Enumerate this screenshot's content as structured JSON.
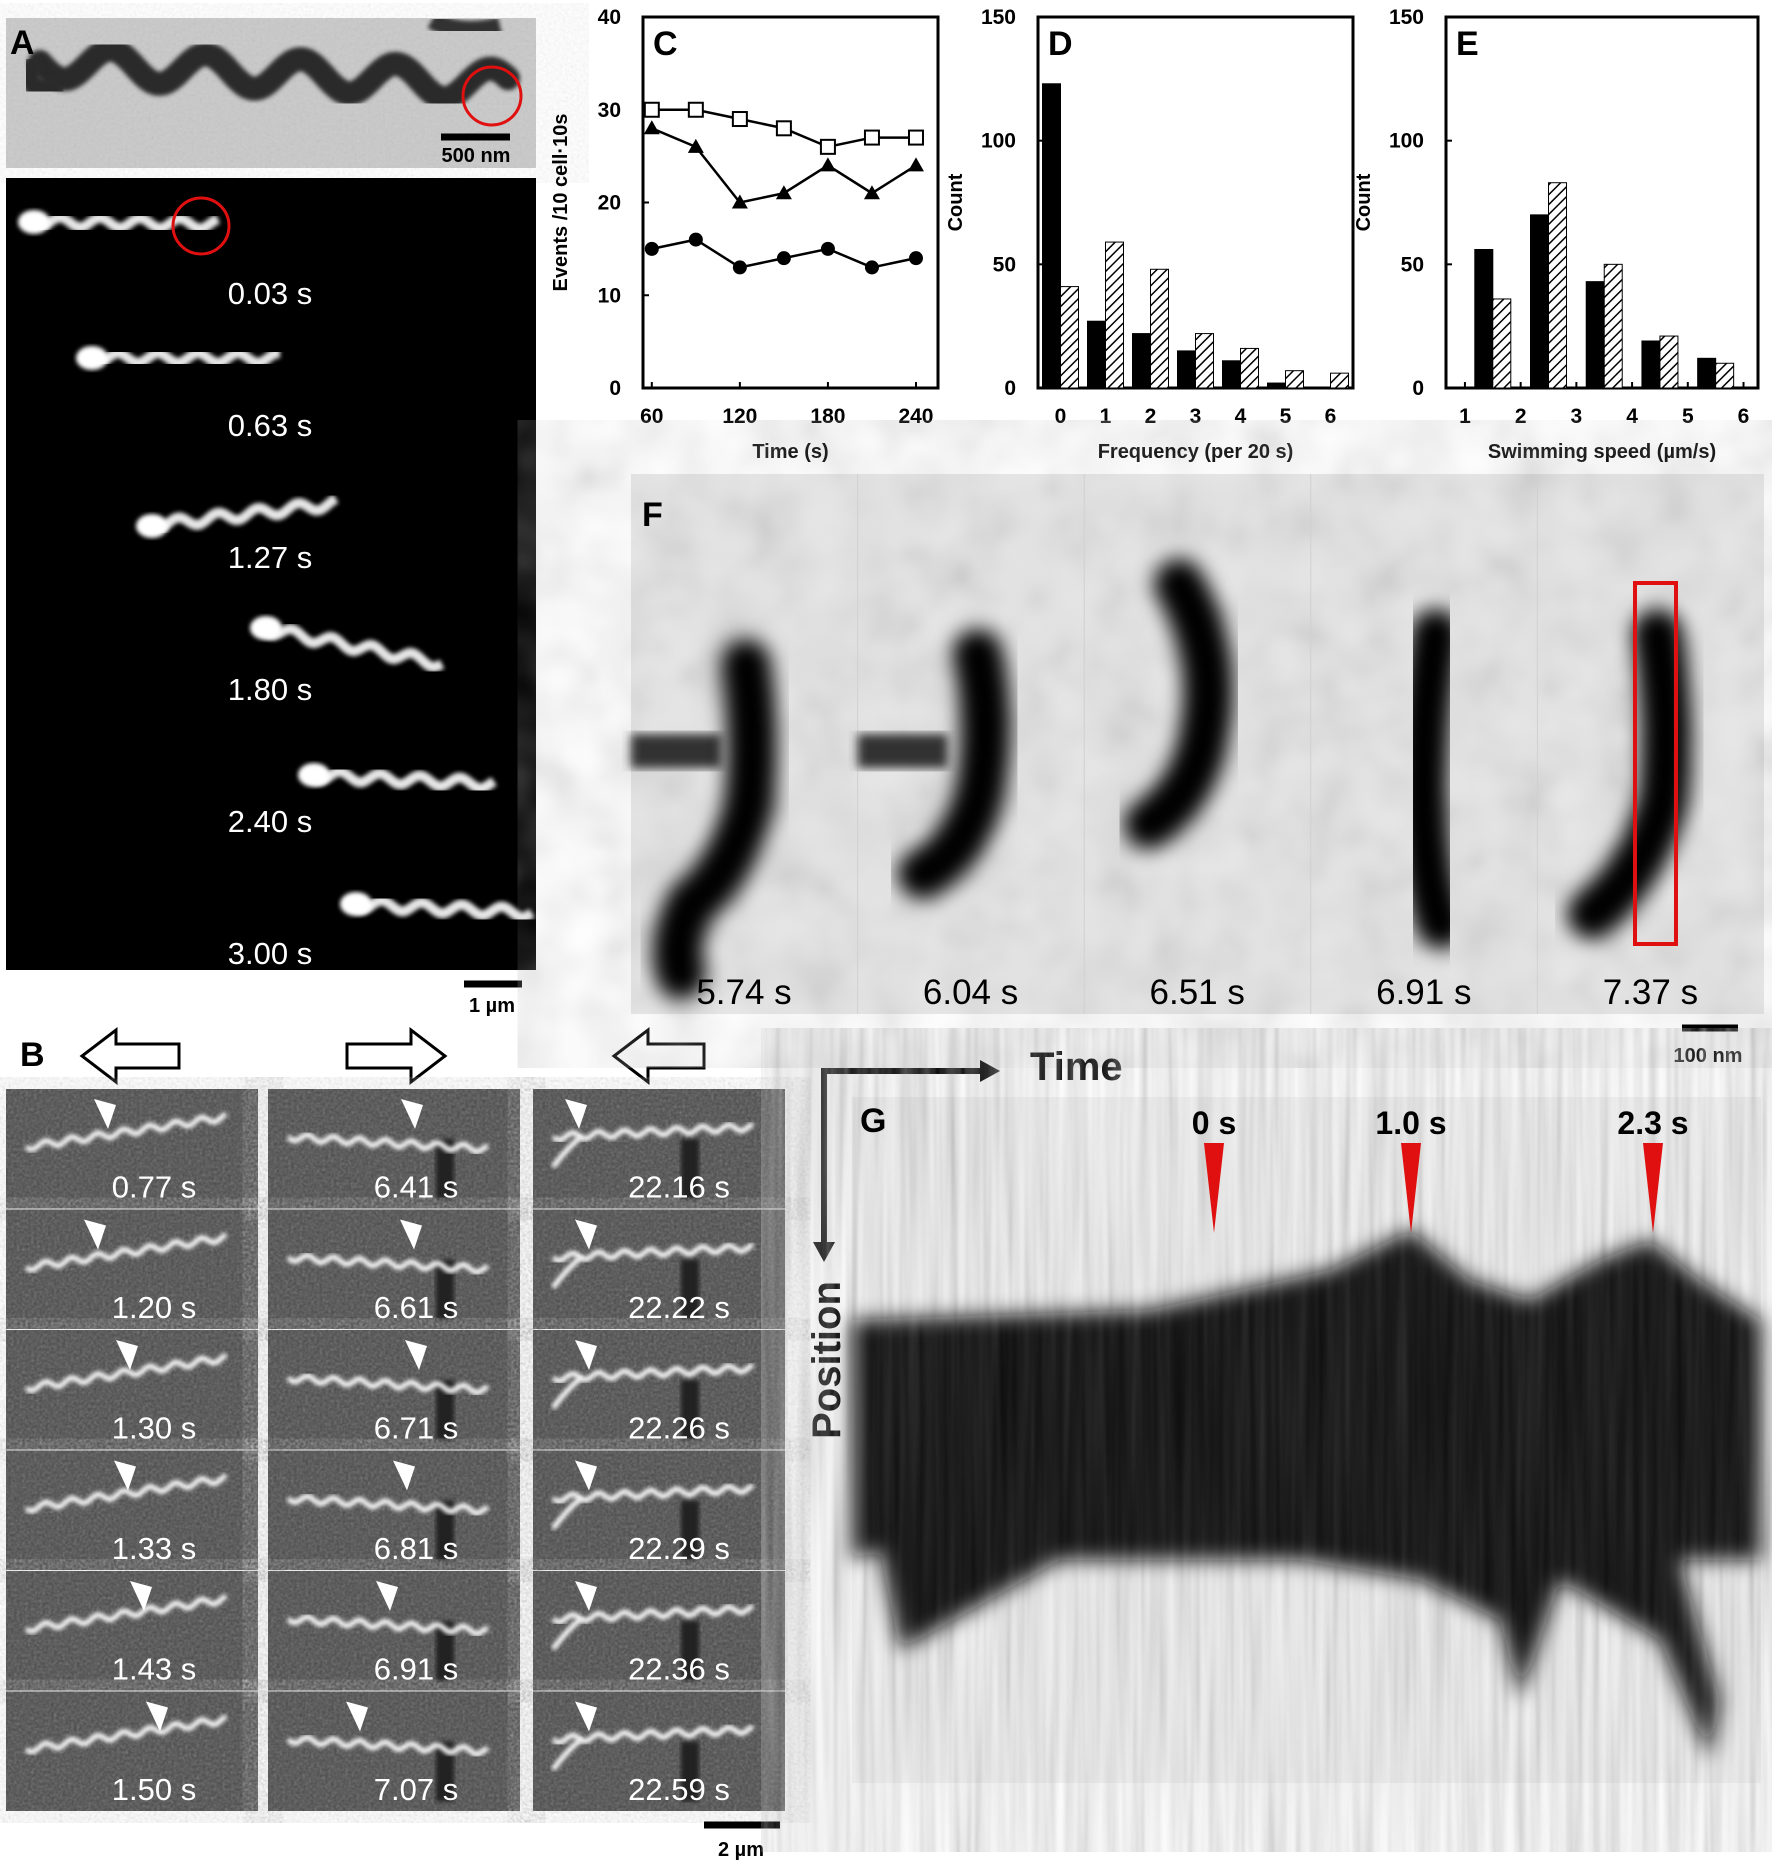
{
  "panels": {
    "A": {
      "label": "A",
      "em_scale": "500 nm",
      "times": [
        "0.03 s",
        "0.63 s",
        "1.27 s",
        "1.80 s",
        "2.40 s",
        "3.00 s"
      ],
      "scale": "1 µm"
    },
    "B": {
      "label": "B",
      "columns": [
        [
          "0.77 s",
          "1.20 s",
          "1.30 s",
          "1.33 s",
          "1.43 s",
          "1.50 s"
        ],
        [
          "6.41 s",
          "6.61 s",
          "6.71 s",
          "6.81 s",
          "6.91 s",
          "7.07 s"
        ],
        [
          "22.16 s",
          "22.22 s",
          "22.26 s",
          "22.29 s",
          "22.36 s",
          "22.59 s"
        ]
      ],
      "scale": "2 µm"
    },
    "F": {
      "label": "F",
      "times": [
        "5.74 s",
        "6.04 s",
        "6.51 s",
        "6.91 s",
        "7.37 s"
      ],
      "scale": "100 nm"
    },
    "G": {
      "label": "G",
      "time_axis": "Time",
      "position_axis": "Position",
      "markers": [
        "0 s",
        "1.0 s",
        "2.3 s"
      ]
    }
  },
  "chart_data": [
    {
      "type": "line",
      "label": "C",
      "x_label": "Time (s)",
      "y_label": "Events /10 cell·10s",
      "x": [
        60,
        90,
        120,
        150,
        180,
        210,
        240
      ],
      "xlim": [
        54,
        255
      ],
      "xticks": [
        60,
        120,
        180,
        240
      ],
      "ylim": [
        0,
        40
      ],
      "yticks": [
        0,
        10,
        20,
        30,
        40
      ],
      "series": [
        {
          "marker": "square-open",
          "color": "#000000",
          "values": [
            30,
            30,
            29,
            28,
            26,
            27,
            27
          ]
        },
        {
          "marker": "triangle",
          "color": "#000000",
          "values": [
            28,
            26,
            20,
            21,
            24,
            21,
            24
          ]
        },
        {
          "marker": "circle",
          "color": "#000000",
          "values": [
            15,
            16,
            13,
            14,
            15,
            13,
            14
          ]
        }
      ]
    },
    {
      "type": "bar",
      "label": "D",
      "x_label": "Frequency (per 20 s)",
      "y_label": "Count",
      "categories": [
        "0",
        "1",
        "2",
        "3",
        "4",
        "5",
        "6"
      ],
      "ylim": [
        0,
        150
      ],
      "yticks": [
        0,
        50,
        100,
        150
      ],
      "series": [
        {
          "color": "#000000",
          "pattern": "solid",
          "values": [
            123,
            27,
            22,
            15,
            11,
            2,
            0
          ]
        },
        {
          "color": "#000000",
          "pattern": "hatch",
          "values": [
            41,
            59,
            48,
            22,
            16,
            7,
            6
          ]
        }
      ]
    },
    {
      "type": "bar",
      "label": "E",
      "x_label": "Swimming speed (µm/s)",
      "y_label": "Count",
      "x": [
        1.5,
        2.5,
        3.5,
        4.5,
        5.5
      ],
      "xlim": [
        0.66,
        6.26
      ],
      "xticks": [
        1,
        2,
        3,
        4,
        5,
        6
      ],
      "ylim": [
        0,
        150
      ],
      "yticks": [
        0,
        50,
        100,
        150
      ],
      "series": [
        {
          "color": "#000000",
          "pattern": "solid",
          "values": [
            56,
            70,
            43,
            19,
            12
          ]
        },
        {
          "color": "#000000",
          "pattern": "hatch",
          "values": [
            36,
            83,
            50,
            21,
            10
          ]
        }
      ]
    }
  ]
}
